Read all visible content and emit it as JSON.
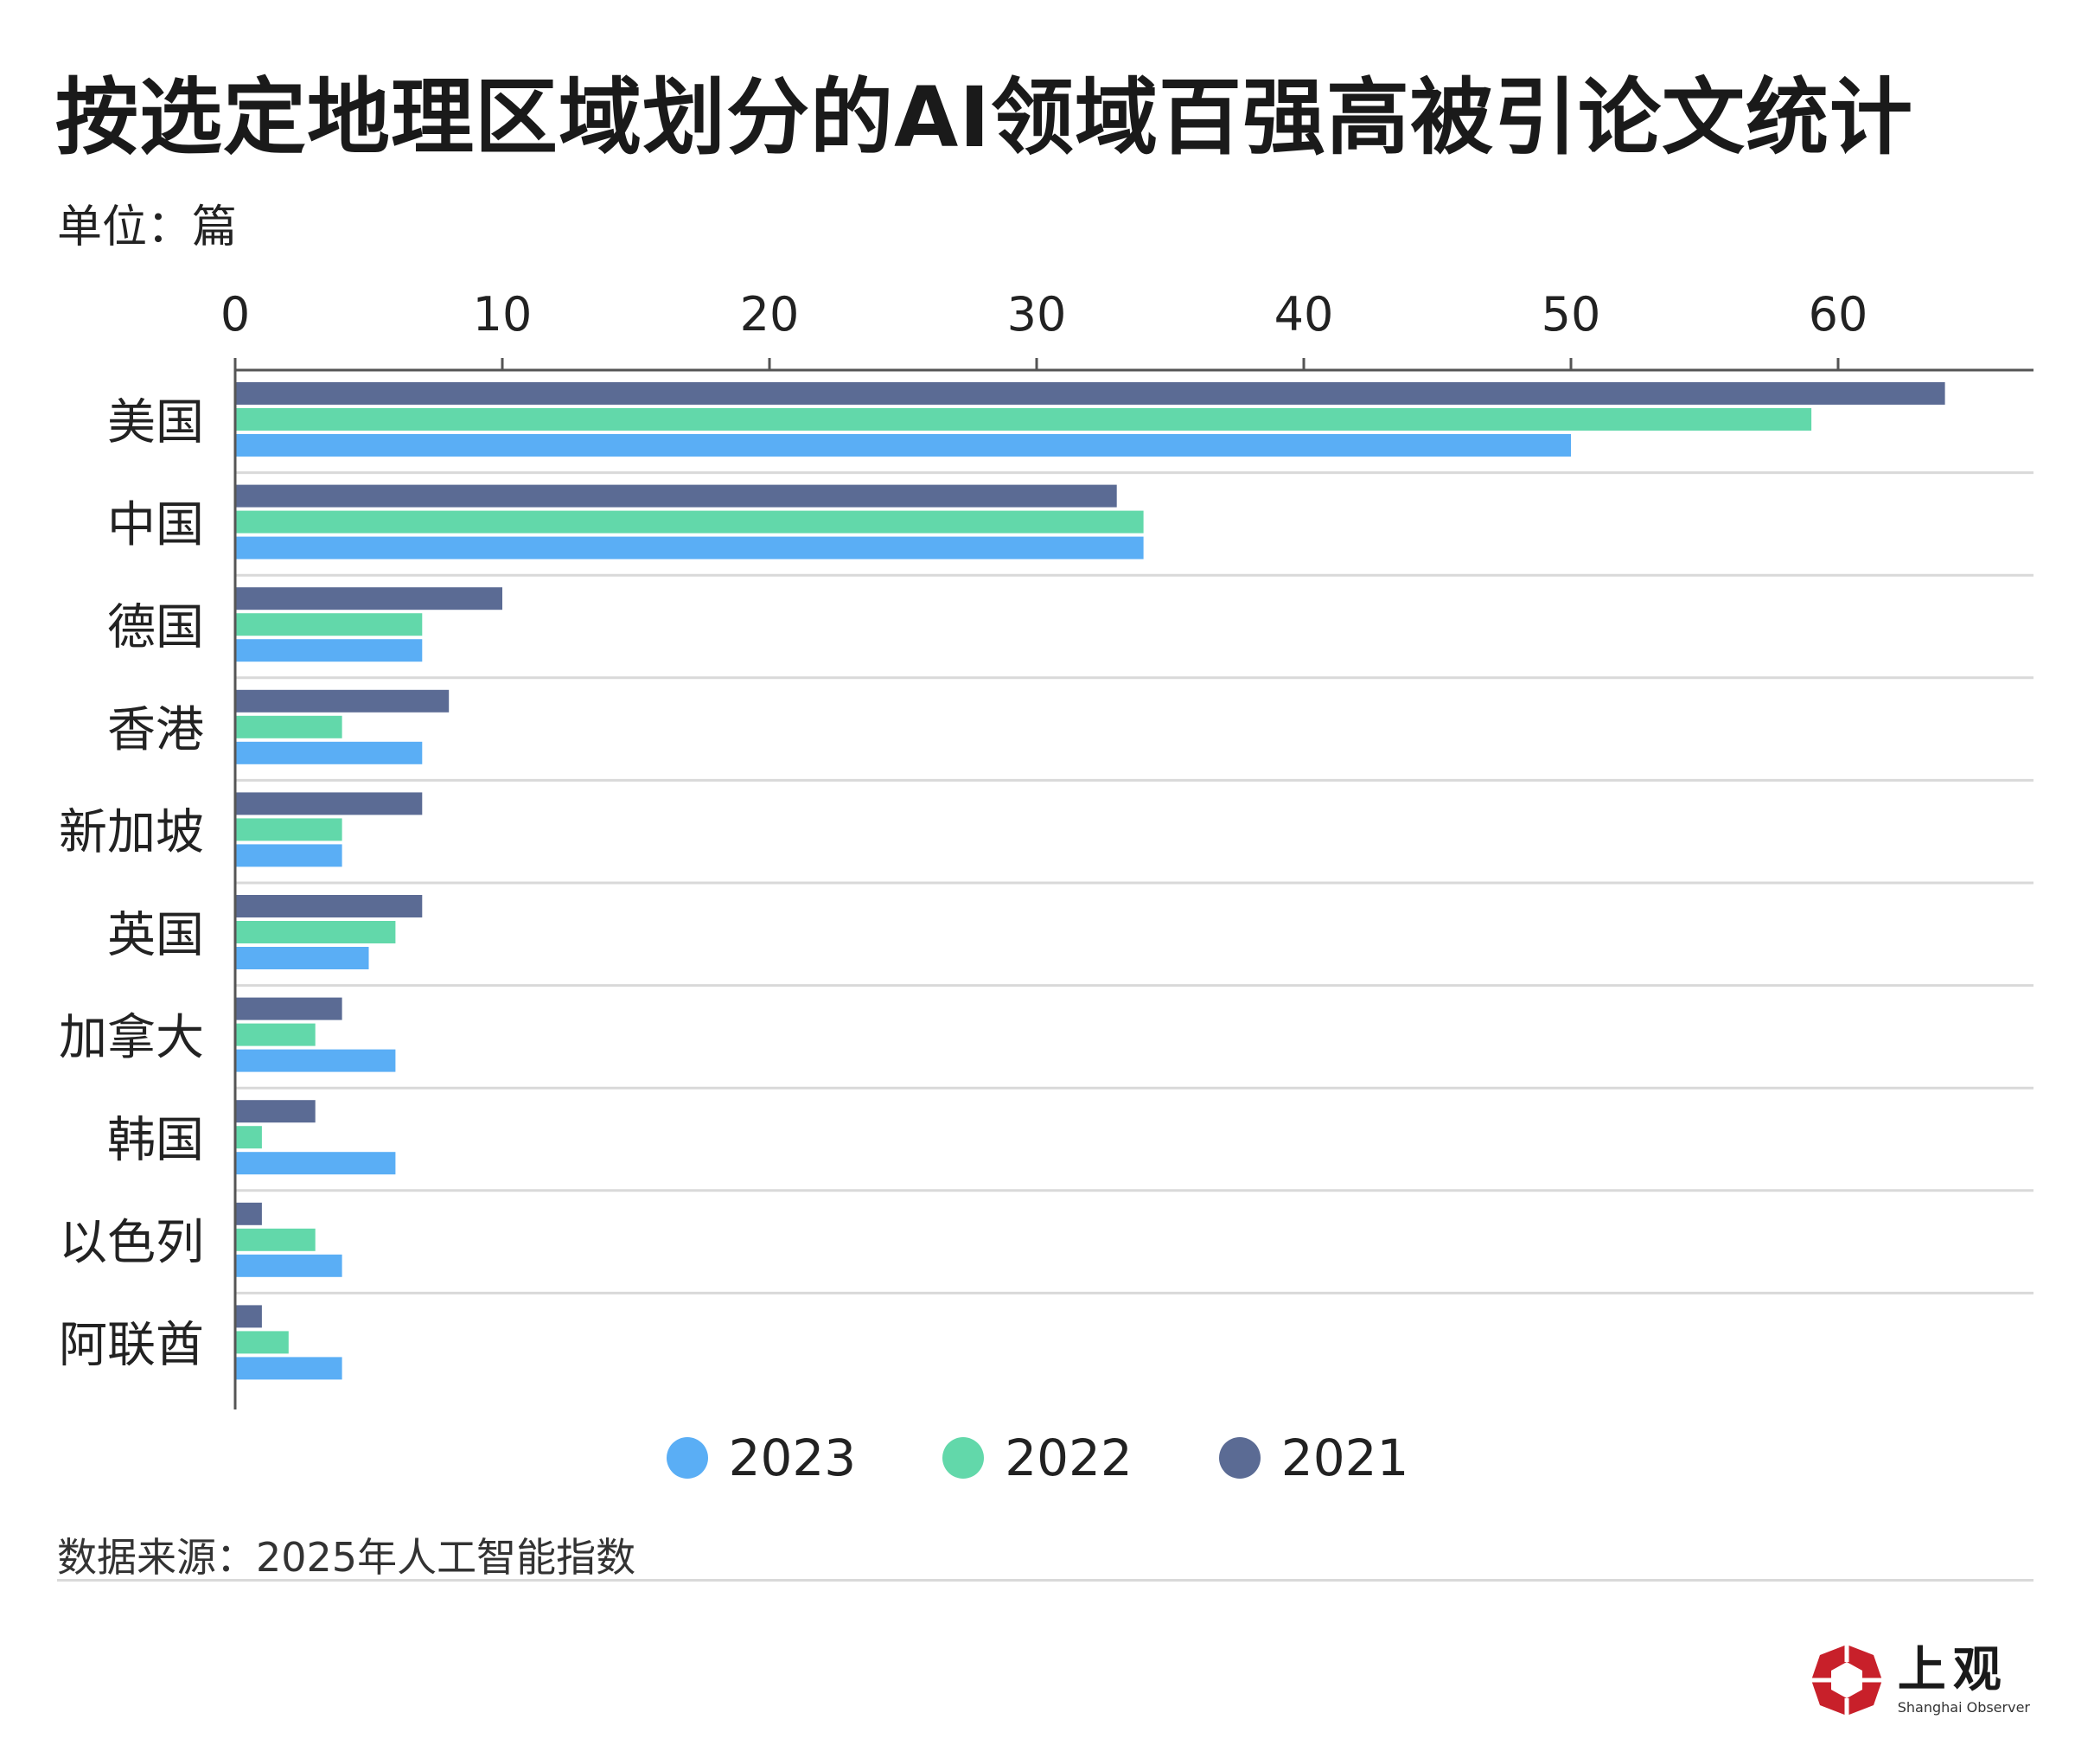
{
  "title": "按选定地理区域划分的AI领域百强高被引论文统计",
  "unit": "单位：篇",
  "source": "数据来源：2025年人工智能指数",
  "brand": {
    "cn": "上观",
    "en": "Shanghai Observer"
  },
  "colors": {
    "2023": "#5aaef5",
    "2022": "#62d8aa",
    "2021": "#5b6b94",
    "axis": "#555555",
    "grid": "#d9d9d9"
  },
  "chart_data": {
    "type": "bar",
    "orientation": "horizontal",
    "title": "按选定地理区域划分的AI领域百强高被引论文统计",
    "unit": "单位：篇",
    "categories": [
      "美国",
      "中国",
      "德国",
      "香港",
      "新加坡",
      "英国",
      "加拿大",
      "韩国",
      "以色列",
      "阿联酋"
    ],
    "series": [
      {
        "name": "2021",
        "values": [
          64,
          33,
          10,
          8,
          7,
          7,
          4,
          3,
          1,
          1
        ]
      },
      {
        "name": "2022",
        "values": [
          59,
          34,
          7,
          4,
          4,
          6,
          3,
          1,
          3,
          2
        ]
      },
      {
        "name": "2023",
        "values": [
          50,
          34,
          7,
          7,
          4,
          5,
          6,
          6,
          4,
          4
        ]
      }
    ],
    "xticks": [
      0,
      10,
      20,
      30,
      40,
      50,
      60
    ],
    "xlim": [
      0,
      67
    ],
    "axis_position": "top",
    "legend_position": "bottom-center",
    "legend_order": [
      "2023",
      "2022",
      "2021"
    ]
  }
}
